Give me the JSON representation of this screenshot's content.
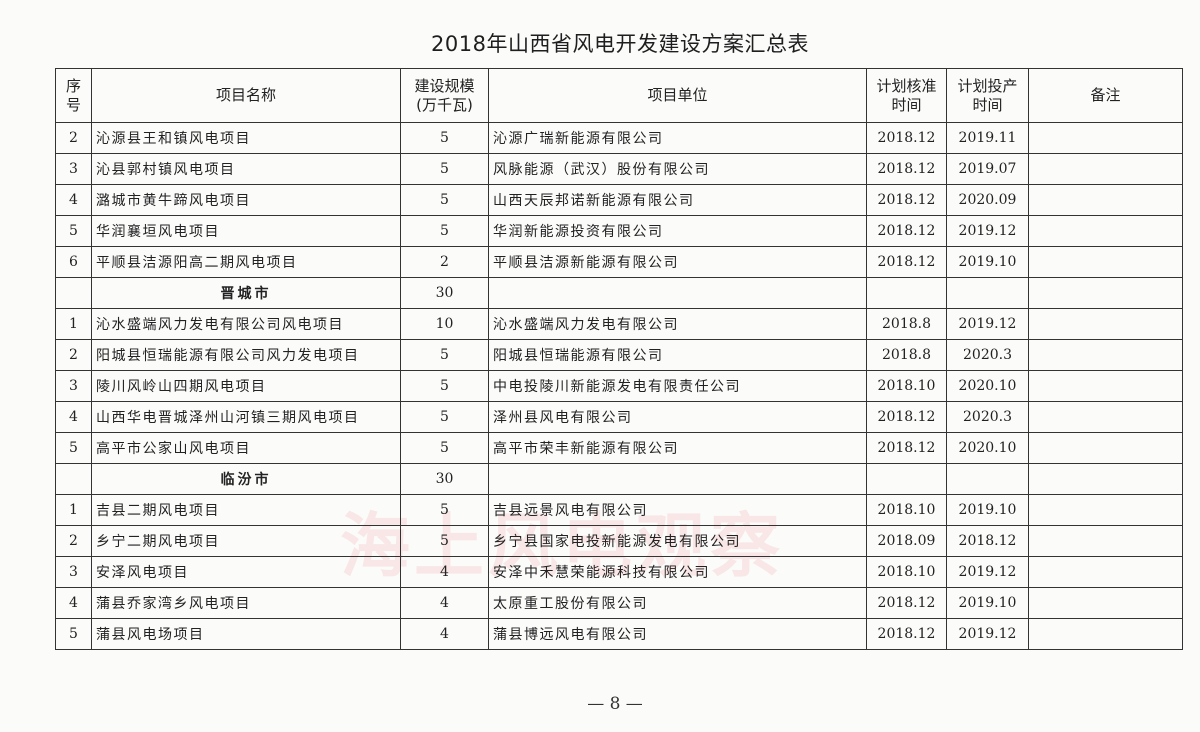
{
  "title": "2018年山西省风电开发建设方案汇总表",
  "headers": {
    "seq": [
      "序",
      "号"
    ],
    "name": "项目名称",
    "scale": [
      "建设规模",
      "(万千瓦)"
    ],
    "unit": "项目单位",
    "approve": [
      "计划核准",
      "时间"
    ],
    "operate": [
      "计划投产",
      "时间"
    ],
    "note": "备注"
  },
  "rows": [
    {
      "seq": "2",
      "name": "沁源县王和镇风电项目",
      "scale": "5",
      "unit": "沁源广瑞新能源有限公司",
      "approve": "2018.12",
      "operate": "2019.11",
      "note": ""
    },
    {
      "seq": "3",
      "name": "沁县郭村镇风电项目",
      "scale": "5",
      "unit": "风脉能源（武汉）股份有限公司",
      "approve": "2018.12",
      "operate": "2019.07",
      "note": ""
    },
    {
      "seq": "4",
      "name": "潞城市黄牛蹄风电项目",
      "scale": "5",
      "unit": "山西天辰邦诺新能源有限公司",
      "approve": "2018.12",
      "operate": "2020.09",
      "note": ""
    },
    {
      "seq": "5",
      "name": "华润襄垣风电项目",
      "scale": "5",
      "unit": "华润新能源投资有限公司",
      "approve": "2018.12",
      "operate": "2019.12",
      "note": ""
    },
    {
      "seq": "6",
      "name": "平顺县洁源阳高二期风电项目",
      "scale": "2",
      "unit": "平顺县洁源新能源有限公司",
      "approve": "2018.12",
      "operate": "2019.10",
      "note": ""
    },
    {
      "seq": "",
      "name": "晋城市",
      "scale": "30",
      "unit": "",
      "approve": "",
      "operate": "",
      "note": "",
      "subtotal": true
    },
    {
      "seq": "1",
      "name": "沁水盛端风力发电有限公司风电项目",
      "scale": "10",
      "unit": "沁水盛端风力发电有限公司",
      "approve": "2018.8",
      "operate": "2019.12",
      "note": ""
    },
    {
      "seq": "2",
      "name": "阳城县恒瑞能源有限公司风力发电项目",
      "scale": "5",
      "unit": "阳城县恒瑞能源有限公司",
      "approve": "2018.8",
      "operate": "2020.3",
      "note": ""
    },
    {
      "seq": "3",
      "name": "陵川风岭山四期风电项目",
      "scale": "5",
      "unit": "中电投陵川新能源发电有限责任公司",
      "approve": "2018.10",
      "operate": "2020.10",
      "note": ""
    },
    {
      "seq": "4",
      "name": "山西华电晋城泽州山河镇三期风电项目",
      "scale": "5",
      "unit": "泽州县风电有限公司",
      "approve": "2018.12",
      "operate": "2020.3",
      "note": ""
    },
    {
      "seq": "5",
      "name": "高平市公家山风电项目",
      "scale": "5",
      "unit": "高平市荣丰新能源有限公司",
      "approve": "2018.12",
      "operate": "2020.10",
      "note": ""
    },
    {
      "seq": "",
      "name": "临汾市",
      "scale": "30",
      "unit": "",
      "approve": "",
      "operate": "",
      "note": "",
      "subtotal": true
    },
    {
      "seq": "1",
      "name": "吉县二期风电项目",
      "scale": "5",
      "unit": "吉县远景风电有限公司",
      "approve": "2018.10",
      "operate": "2019.10",
      "note": ""
    },
    {
      "seq": "2",
      "name": "乡宁二期风电项目",
      "scale": "5",
      "unit": "乡宁县国家电投新能源发电有限公司",
      "approve": "2018.09",
      "operate": "2018.12",
      "note": ""
    },
    {
      "seq": "3",
      "name": "安泽风电项目",
      "scale": "4",
      "unit": "安泽中禾慧荣能源科技有限公司",
      "approve": "2018.10",
      "operate": "2019.12",
      "note": ""
    },
    {
      "seq": "4",
      "name": "蒲县乔家湾乡风电项目",
      "scale": "4",
      "unit": "太原重工股份有限公司",
      "approve": "2018.12",
      "operate": "2019.10",
      "note": ""
    },
    {
      "seq": "5",
      "name": "蒲县风电场项目",
      "scale": "4",
      "unit": "蒲县博远风电有限公司",
      "approve": "2018.12",
      "operate": "2019.12",
      "note": ""
    }
  ],
  "watermark": "海上风电观察",
  "page_number": "— 8 —"
}
